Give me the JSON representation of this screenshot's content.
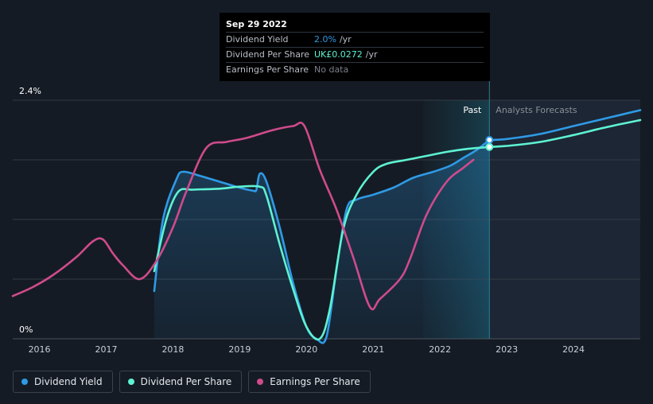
{
  "tooltip": {
    "date": "Sep 29 2022",
    "rows": [
      {
        "label": "Dividend Yield",
        "value": "2.0%",
        "unit": "/yr"
      },
      {
        "label": "Dividend Per Share",
        "value": "UK£0.0272",
        "unit": "/yr"
      },
      {
        "label": "Earnings Per Share",
        "value": "No data",
        "unit": ""
      }
    ]
  },
  "regions": {
    "past": "Past",
    "forecast": "Analysts Forecasts"
  },
  "legend": [
    {
      "label": "Dividend Yield",
      "color": "#2f9ae6"
    },
    {
      "label": "Dividend Per Share",
      "color": "#5ef2d2"
    },
    {
      "label": "Earnings Per Share",
      "color": "#cf4b8c"
    }
  ],
  "chart_data": {
    "type": "line",
    "y_ticks": [
      "2.4%",
      "0%"
    ],
    "ylim": [
      0,
      2.4
    ],
    "xlim": [
      2015.6,
      2025.0
    ],
    "x_ticks": [
      "2016",
      "2017",
      "2018",
      "2019",
      "2020",
      "2021",
      "2022",
      "2023",
      "2024"
    ],
    "past_end": 2022.74,
    "forecast_shade_start": 2021.75,
    "series": [
      {
        "name": "Dividend Yield",
        "color": "#2f9ae6",
        "fill": true,
        "points": [
          [
            2017.72,
            0.48
          ],
          [
            2017.85,
            1.2
          ],
          [
            2018.05,
            1.6
          ],
          [
            2018.15,
            1.68
          ],
          [
            2018.4,
            1.64
          ],
          [
            2018.7,
            1.58
          ],
          [
            2019.0,
            1.52
          ],
          [
            2019.2,
            1.49
          ],
          [
            2019.25,
            1.5
          ],
          [
            2019.3,
            1.66
          ],
          [
            2019.4,
            1.58
          ],
          [
            2019.6,
            1.12
          ],
          [
            2019.8,
            0.56
          ],
          [
            2020.0,
            0.12
          ],
          [
            2020.15,
            0.0
          ],
          [
            2020.3,
            0.02
          ],
          [
            2020.45,
            0.7
          ],
          [
            2020.6,
            1.3
          ],
          [
            2020.75,
            1.4
          ],
          [
            2021.0,
            1.45
          ],
          [
            2021.3,
            1.52
          ],
          [
            2021.6,
            1.62
          ],
          [
            2021.9,
            1.68
          ],
          [
            2022.15,
            1.74
          ],
          [
            2022.35,
            1.82
          ],
          [
            2022.55,
            1.9
          ],
          [
            2022.74,
            2.0
          ]
        ]
      },
      {
        "name": "Dividend Per Share",
        "color": "#5ef2d2",
        "fill": false,
        "points": [
          [
            2017.72,
            0.68
          ],
          [
            2017.9,
            1.2
          ],
          [
            2018.08,
            1.48
          ],
          [
            2018.3,
            1.5
          ],
          [
            2018.7,
            1.51
          ],
          [
            2019.0,
            1.53
          ],
          [
            2019.3,
            1.53
          ],
          [
            2019.4,
            1.44
          ],
          [
            2019.6,
            0.95
          ],
          [
            2019.8,
            0.5
          ],
          [
            2020.0,
            0.12
          ],
          [
            2020.2,
            0.0
          ],
          [
            2020.35,
            0.3
          ],
          [
            2020.55,
            1.1
          ],
          [
            2020.75,
            1.45
          ],
          [
            2021.0,
            1.68
          ],
          [
            2021.2,
            1.76
          ],
          [
            2021.5,
            1.8
          ],
          [
            2021.8,
            1.84
          ],
          [
            2022.1,
            1.88
          ],
          [
            2022.4,
            1.91
          ],
          [
            2022.74,
            1.93
          ]
        ]
      },
      {
        "name": "Earnings Per Share",
        "color": "#cf4b8c",
        "fill": false,
        "points": [
          [
            2015.6,
            0.43
          ],
          [
            2015.9,
            0.52
          ],
          [
            2016.2,
            0.64
          ],
          [
            2016.55,
            0.82
          ],
          [
            2016.8,
            0.98
          ],
          [
            2016.95,
            1.0
          ],
          [
            2017.1,
            0.86
          ],
          [
            2017.25,
            0.74
          ],
          [
            2017.5,
            0.6
          ],
          [
            2017.75,
            0.78
          ],
          [
            2018.0,
            1.12
          ],
          [
            2018.2,
            1.48
          ],
          [
            2018.5,
            1.92
          ],
          [
            2018.8,
            1.98
          ],
          [
            2019.1,
            2.02
          ],
          [
            2019.5,
            2.1
          ],
          [
            2019.8,
            2.14
          ],
          [
            2019.97,
            2.14
          ],
          [
            2020.2,
            1.7
          ],
          [
            2020.45,
            1.3
          ],
          [
            2020.7,
            0.82
          ],
          [
            2020.95,
            0.32
          ],
          [
            2021.1,
            0.4
          ],
          [
            2021.4,
            0.6
          ],
          [
            2021.55,
            0.8
          ],
          [
            2021.8,
            1.25
          ],
          [
            2022.1,
            1.58
          ],
          [
            2022.35,
            1.72
          ],
          [
            2022.5,
            1.8
          ]
        ]
      },
      {
        "name": "Dividend Yield (forecast)",
        "color": "#2f9ae6",
        "fill": false,
        "points": [
          [
            2022.74,
            2.0
          ],
          [
            2023.0,
            2.01
          ],
          [
            2023.5,
            2.06
          ],
          [
            2024.0,
            2.14
          ],
          [
            2024.5,
            2.22
          ],
          [
            2025.0,
            2.3
          ]
        ]
      },
      {
        "name": "Dividend Per Share (forecast)",
        "color": "#5ef2d2",
        "fill": false,
        "points": [
          [
            2022.74,
            1.93
          ],
          [
            2023.0,
            1.94
          ],
          [
            2023.5,
            1.98
          ],
          [
            2024.0,
            2.05
          ],
          [
            2024.5,
            2.13
          ],
          [
            2025.0,
            2.2
          ]
        ]
      }
    ],
    "markers": [
      [
        2022.74,
        2.0,
        "#2f9ae6"
      ],
      [
        2022.74,
        1.93,
        "#5ef2d2"
      ]
    ]
  }
}
